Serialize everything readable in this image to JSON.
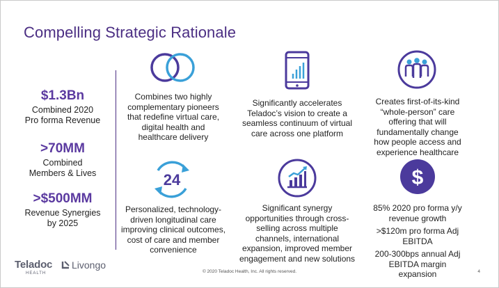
{
  "title": "Compelling Strategic Rationale",
  "stats": [
    {
      "value": "$1.3Bn",
      "label": "Combined 2020 Pro forma Revenue"
    },
    {
      "value": ">70MM",
      "label": "Combined Members & Lives"
    },
    {
      "value": ">$500MM",
      "label": "Revenue Synergies by 2025"
    }
  ],
  "features": {
    "pioneers": "Combines two highly complementary pioneers that redefine virtual care, digital health and healthcare delivery",
    "continuum": "Significantly accelerates Teladoc’s vision to create a seamless continuum of virtual care across one platform",
    "whole_person": "Creates first-of-its-kind “whole-person” care offering that will fundamentally change how people access and experience healthcare",
    "longitudinal": "Personalized, technology-driven longitudinal care improving clinical outcomes, cost of care and member convenience",
    "synergy": "Significant synergy opportunities through cross-selling across multiple channels, international expansion, improved member engagement and new solutions",
    "financial": [
      "85% 2020 pro forma y/y revenue growth",
      ">$120m pro forma Adj EBITDA",
      "200-300bps annual Adj EBITDA margin expansion"
    ]
  },
  "icons": {
    "circles": "overlapping-circles-icon",
    "phone": "mobile-chart-icon",
    "people": "people-group-icon",
    "clock": "24-hour-icon",
    "growth": "bar-chart-growth-icon",
    "dollar": "dollar-icon",
    "clock_label": "24",
    "dollar_label": "$"
  },
  "colors": {
    "purple": "#4b2e83",
    "icon_purple": "#4b3a9c",
    "icon_blue": "#3aa0d8"
  },
  "footer": {
    "copyright": "© 2020 Teladoc Health, Inc. All rights reserved.",
    "page": "4",
    "logo_teladoc": "Teladoc",
    "logo_teladoc_sub": "HEALTH",
    "logo_livongo": "Livongo"
  }
}
